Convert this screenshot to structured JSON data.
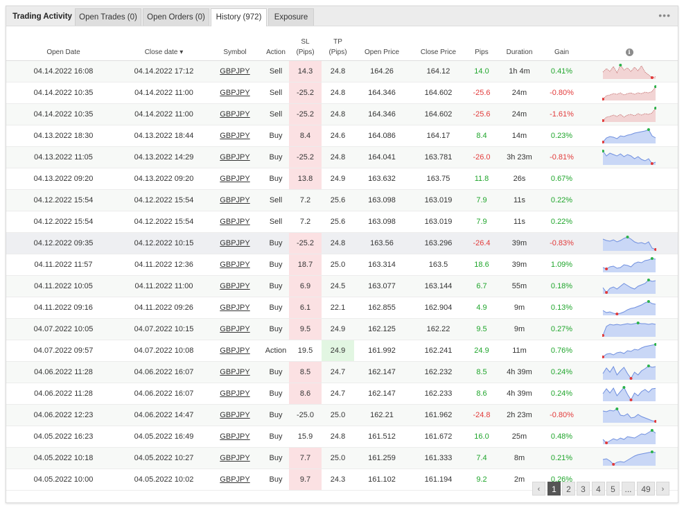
{
  "tabs": [
    {
      "label": "Trading Activity"
    },
    {
      "label": "Open Trades (0)"
    },
    {
      "label": "Open Orders (0)"
    },
    {
      "label": "History (972)"
    },
    {
      "label": "Exposure"
    }
  ],
  "menu_label": "•••",
  "columns": {
    "open_date": "Open Date",
    "close_date": "Close date",
    "close_date_sort": "▾",
    "symbol": "Symbol",
    "action": "Action",
    "sl": "SL",
    "sl_unit": "(Pips)",
    "tp": "TP",
    "tp_unit": "(Pips)",
    "open_price": "Open Price",
    "close_price": "Close Price",
    "pips": "Pips",
    "duration": "Duration",
    "gain": "Gain",
    "info_icon": "i"
  },
  "rows": [
    {
      "open": "04.14.2022 16:08",
      "close": "04.14.2022 17:12",
      "symbol": "GBPJPY",
      "action": "Sell",
      "sl": "14.3",
      "tp": "24.8",
      "open_price": "164.26",
      "close_price": "164.12",
      "pips": "14.0",
      "duration": "1h 4m",
      "gain": "0.41%",
      "sl_red": true,
      "tp_green": false,
      "spark": [
        0.45,
        0.7,
        0.5,
        0.85,
        0.4,
        0.95,
        0.6,
        0.75,
        0.5,
        0.8,
        0.55,
        0.9,
        0.45,
        0.25,
        0.05,
        0.12
      ],
      "spark_color": "red"
    },
    {
      "open": "04.14.2022 10:35",
      "close": "04.14.2022 11:00",
      "symbol": "GBPJPY",
      "action": "Sell",
      "sl": "-25.2",
      "tp": "24.8",
      "open_price": "164.346",
      "close_price": "164.602",
      "pips": "-25.6",
      "duration": "24m",
      "gain": "-0.80%",
      "sl_red": true,
      "tp_green": false,
      "spark": [
        0.05,
        0.3,
        0.35,
        0.45,
        0.4,
        0.5,
        0.35,
        0.45,
        0.5,
        0.4,
        0.5,
        0.45,
        0.55,
        0.5,
        0.6,
        0.95
      ],
      "spark_color": "red"
    },
    {
      "open": "04.14.2022 10:35",
      "close": "04.14.2022 11:00",
      "symbol": "GBPJPY",
      "action": "Sell",
      "sl": "-25.2",
      "tp": "24.8",
      "open_price": "164.346",
      "close_price": "164.602",
      "pips": "-25.6",
      "duration": "24m",
      "gain": "-1.61%",
      "sl_red": true,
      "tp_green": false,
      "spark": [
        0.05,
        0.3,
        0.35,
        0.45,
        0.35,
        0.5,
        0.3,
        0.45,
        0.5,
        0.4,
        0.55,
        0.45,
        0.55,
        0.5,
        0.6,
        0.95
      ],
      "spark_color": "red"
    },
    {
      "open": "04.13.2022 18:30",
      "close": "04.13.2022 18:44",
      "symbol": "GBPJPY",
      "action": "Buy",
      "sl": "8.4",
      "tp": "24.6",
      "open_price": "164.086",
      "close_price": "164.17",
      "pips": "8.4",
      "duration": "14m",
      "gain": "0.23%",
      "sl_red": true,
      "tp_green": false,
      "spark": [
        0.05,
        0.35,
        0.45,
        0.4,
        0.3,
        0.5,
        0.45,
        0.55,
        0.6,
        0.7,
        0.75,
        0.8,
        0.85,
        0.95,
        0.5,
        0.35
      ],
      "spark_color": "blue"
    },
    {
      "open": "04.13.2022 11:05",
      "close": "04.13.2022 14:29",
      "symbol": "GBPJPY",
      "action": "Buy",
      "sl": "-25.2",
      "tp": "24.8",
      "open_price": "164.041",
      "close_price": "163.781",
      "pips": "-26.0",
      "duration": "3h 23m",
      "gain": "-0.81%",
      "sl_red": true,
      "tp_green": false,
      "spark": [
        0.95,
        0.6,
        0.8,
        0.7,
        0.6,
        0.75,
        0.55,
        0.7,
        0.6,
        0.4,
        0.55,
        0.35,
        0.25,
        0.4,
        0.05,
        0.15
      ],
      "spark_color": "blue"
    },
    {
      "open": "04.13.2022 09:20",
      "close": "04.13.2022 09:20",
      "symbol": "GBPJPY",
      "action": "Buy",
      "sl": "13.8",
      "tp": "24.9",
      "open_price": "163.632",
      "close_price": "163.75",
      "pips": "11.8",
      "duration": "26s",
      "gain": "0.67%",
      "sl_red": true,
      "tp_green": false,
      "spark": null,
      "spark_color": ""
    },
    {
      "open": "04.12.2022 15:54",
      "close": "04.12.2022 15:54",
      "symbol": "GBPJPY",
      "action": "Sell",
      "sl": "7.2",
      "tp": "25.6",
      "open_price": "163.098",
      "close_price": "163.019",
      "pips": "7.9",
      "duration": "11s",
      "gain": "0.22%",
      "sl_red": false,
      "tp_green": false,
      "spark": null,
      "spark_color": ""
    },
    {
      "open": "04.12.2022 15:54",
      "close": "04.12.2022 15:54",
      "symbol": "GBPJPY",
      "action": "Sell",
      "sl": "7.2",
      "tp": "25.6",
      "open_price": "163.098",
      "close_price": "163.019",
      "pips": "7.9",
      "duration": "11s",
      "gain": "0.22%",
      "sl_red": false,
      "tp_green": false,
      "spark": null,
      "spark_color": ""
    },
    {
      "open": "04.12.2022 09:35",
      "close": "04.12.2022 10:15",
      "symbol": "GBPJPY",
      "action": "Buy",
      "sl": "-25.2",
      "tp": "24.8",
      "open_price": "163.56",
      "close_price": "163.296",
      "pips": "-26.4",
      "duration": "39m",
      "gain": "-0.83%",
      "sl_red": true,
      "tp_green": false,
      "spark": [
        0.8,
        0.7,
        0.65,
        0.75,
        0.6,
        0.7,
        0.85,
        0.95,
        0.8,
        0.6,
        0.5,
        0.55,
        0.45,
        0.6,
        0.15,
        0.05
      ],
      "spark_color": "blue"
    },
    {
      "open": "04.11.2022 11:57",
      "close": "04.11.2022 12:36",
      "symbol": "GBPJPY",
      "action": "Buy",
      "sl": "18.7",
      "tp": "25.0",
      "open_price": "163.314",
      "close_price": "163.5",
      "pips": "18.6",
      "duration": "39m",
      "gain": "1.09%",
      "sl_red": true,
      "tp_green": false,
      "spark": [
        0.3,
        0.2,
        0.35,
        0.4,
        0.25,
        0.3,
        0.5,
        0.45,
        0.35,
        0.6,
        0.7,
        0.65,
        0.8,
        0.85,
        0.95,
        0.9
      ],
      "spark_color": "blue"
    },
    {
      "open": "04.11.2022 10:05",
      "close": "04.11.2022 11:00",
      "symbol": "GBPJPY",
      "action": "Buy",
      "sl": "6.9",
      "tp": "24.5",
      "open_price": "163.077",
      "close_price": "163.144",
      "pips": "6.7",
      "duration": "55m",
      "gain": "0.18%",
      "sl_red": true,
      "tp_green": false,
      "spark": [
        0.4,
        0.05,
        0.35,
        0.45,
        0.3,
        0.5,
        0.7,
        0.55,
        0.4,
        0.3,
        0.5,
        0.6,
        0.7,
        0.95,
        0.85,
        0.9
      ],
      "spark_color": "blue"
    },
    {
      "open": "04.11.2022 09:16",
      "close": "04.11.2022 09:26",
      "symbol": "GBPJPY",
      "action": "Buy",
      "sl": "6.1",
      "tp": "22.1",
      "open_price": "162.855",
      "close_price": "162.904",
      "pips": "4.9",
      "duration": "9m",
      "gain": "0.13%",
      "sl_red": true,
      "tp_green": false,
      "spark": [
        0.3,
        0.15,
        0.2,
        0.1,
        0.05,
        0.1,
        0.2,
        0.35,
        0.45,
        0.5,
        0.6,
        0.7,
        0.85,
        0.95,
        0.8,
        0.75
      ],
      "spark_color": "blue"
    },
    {
      "open": "04.07.2022 10:05",
      "close": "04.07.2022 10:15",
      "symbol": "GBPJPY",
      "action": "Buy",
      "sl": "9.5",
      "tp": "24.9",
      "open_price": "162.125",
      "close_price": "162.22",
      "pips": "9.5",
      "duration": "9m",
      "gain": "0.27%",
      "sl_red": true,
      "tp_green": false,
      "spark": [
        0.05,
        0.7,
        0.85,
        0.8,
        0.85,
        0.8,
        0.85,
        0.9,
        0.85,
        0.9,
        0.95,
        0.9,
        0.9,
        0.85,
        0.9,
        0.85
      ],
      "spark_color": "blue"
    },
    {
      "open": "04.07.2022 09:57",
      "close": "04.07.2022 10:08",
      "symbol": "GBPJPY",
      "action": "Action",
      "sl": "19.5",
      "tp": "24.9",
      "open_price": "161.992",
      "close_price": "162.241",
      "pips": "24.9",
      "duration": "11m",
      "gain": "0.76%",
      "sl_red": false,
      "tp_green": true,
      "spark": [
        0.05,
        0.25,
        0.3,
        0.2,
        0.35,
        0.4,
        0.3,
        0.5,
        0.45,
        0.6,
        0.55,
        0.7,
        0.8,
        0.85,
        0.9,
        0.95
      ],
      "spark_color": "blue"
    },
    {
      "open": "04.06.2022 11:28",
      "close": "04.06.2022 16:07",
      "symbol": "GBPJPY",
      "action": "Buy",
      "sl": "8.5",
      "tp": "24.7",
      "open_price": "162.147",
      "close_price": "162.232",
      "pips": "8.5",
      "duration": "4h 39m",
      "gain": "0.24%",
      "sl_red": true,
      "tp_green": false,
      "spark": [
        0.4,
        0.8,
        0.5,
        0.9,
        0.3,
        0.6,
        0.85,
        0.4,
        0.05,
        0.5,
        0.3,
        0.6,
        0.75,
        0.95,
        0.85,
        0.9
      ],
      "spark_color": "blue"
    },
    {
      "open": "04.06.2022 11:28",
      "close": "04.06.2022 16:07",
      "symbol": "GBPJPY",
      "action": "Buy",
      "sl": "8.6",
      "tp": "24.7",
      "open_price": "162.147",
      "close_price": "162.233",
      "pips": "8.6",
      "duration": "4h 39m",
      "gain": "0.24%",
      "sl_red": true,
      "tp_green": false,
      "spark": [
        0.5,
        0.85,
        0.55,
        0.9,
        0.35,
        0.65,
        0.95,
        0.45,
        0.05,
        0.55,
        0.35,
        0.65,
        0.8,
        0.6,
        0.85,
        0.88
      ],
      "spark_color": "blue"
    },
    {
      "open": "04.06.2022 12:23",
      "close": "04.06.2022 14:47",
      "symbol": "GBPJPY",
      "action": "Buy",
      "sl": "-25.0",
      "tp": "25.0",
      "open_price": "162.21",
      "close_price": "161.962",
      "pips": "-24.8",
      "duration": "2h 23m",
      "gain": "-0.80%",
      "sl_red": false,
      "tp_green": false,
      "spark": [
        0.8,
        0.75,
        0.85,
        0.8,
        0.95,
        0.5,
        0.45,
        0.6,
        0.3,
        0.35,
        0.55,
        0.4,
        0.3,
        0.2,
        0.1,
        0.05
      ],
      "spark_color": "blue"
    },
    {
      "open": "04.05.2022 16:23",
      "close": "04.05.2022 16:49",
      "symbol": "GBPJPY",
      "action": "Buy",
      "sl": "15.9",
      "tp": "24.8",
      "open_price": "161.512",
      "close_price": "161.672",
      "pips": "16.0",
      "duration": "25m",
      "gain": "0.48%",
      "sl_red": false,
      "tp_green": false,
      "spark": [
        0.3,
        0.05,
        0.2,
        0.35,
        0.25,
        0.4,
        0.3,
        0.5,
        0.45,
        0.4,
        0.55,
        0.7,
        0.65,
        0.8,
        0.95,
        0.75
      ],
      "spark_color": "blue"
    },
    {
      "open": "04.05.2022 10:18",
      "close": "04.05.2022 10:27",
      "symbol": "GBPJPY",
      "action": "Buy",
      "sl": "7.7",
      "tp": "25.0",
      "open_price": "161.259",
      "close_price": "161.333",
      "pips": "7.4",
      "duration": "8m",
      "gain": "0.21%",
      "sl_red": true,
      "tp_green": false,
      "spark": [
        0.4,
        0.45,
        0.3,
        0.05,
        0.2,
        0.25,
        0.2,
        0.35,
        0.5,
        0.65,
        0.75,
        0.8,
        0.85,
        0.9,
        0.95,
        0.9
      ],
      "spark_color": "blue"
    },
    {
      "open": "04.05.2022 10:00",
      "close": "04.05.2022 10:02",
      "symbol": "GBPJPY",
      "action": "Buy",
      "sl": "9.7",
      "tp": "24.3",
      "open_price": "161.102",
      "close_price": "161.194",
      "pips": "9.2",
      "duration": "2m",
      "gain": "0.26%",
      "sl_red": true,
      "tp_green": false,
      "spark": null,
      "spark_color": ""
    }
  ],
  "pagination": {
    "prev": "‹",
    "next": "›",
    "pages": [
      "1",
      "2",
      "3",
      "4",
      "5",
      "...",
      "49"
    ],
    "current": "1"
  },
  "colors": {
    "positive": "#1fa52b",
    "negative": "#e23a3a",
    "sl_highlight": "#fbe1e3",
    "tp_highlight": "#e2f6e2",
    "spark_blue_fill": "#c9d7f6",
    "spark_blue_line": "#6f8fdf",
    "spark_red_fill": "#f2d4d4",
    "spark_red_line": "#c97b7b"
  }
}
